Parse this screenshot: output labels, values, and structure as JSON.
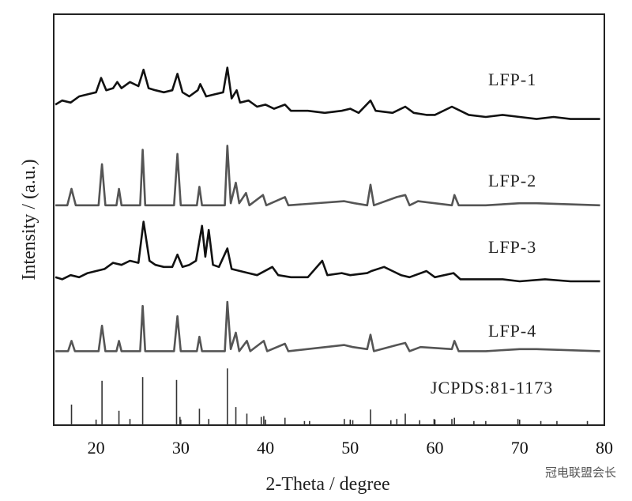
{
  "chart_data": {
    "type": "line",
    "xlabel": "2-Theta / degree",
    "ylabel": "Intensity / (a.u.)",
    "xlim": [
      15,
      80
    ],
    "xticks": [
      20,
      30,
      40,
      50,
      60,
      70,
      80
    ],
    "ylim": [
      0,
      100
    ],
    "series": [
      {
        "name": "LFP-1",
        "color": "#111111",
        "x": [
          15.2,
          16,
          17,
          18,
          19,
          20,
          20.6,
          21.2,
          22,
          22.5,
          23,
          24,
          25,
          25.6,
          26.2,
          27,
          28,
          29,
          29.6,
          30.2,
          31,
          32,
          32.3,
          33,
          34,
          35,
          35.5,
          36,
          36.6,
          37,
          38,
          39,
          40,
          41,
          42.3,
          43,
          45,
          47,
          49,
          50,
          51,
          52.4,
          53,
          55,
          56.5,
          57.5,
          59,
          60,
          62,
          63,
          64,
          66,
          68,
          70,
          72,
          74,
          76,
          78,
          79.5
        ],
        "values": [
          78,
          79,
          78.5,
          80,
          80.5,
          81,
          84.5,
          81.5,
          82,
          83.5,
          82,
          83.5,
          82.5,
          86.5,
          82,
          81.5,
          81,
          81.5,
          85.5,
          81,
          80,
          81.5,
          83,
          80,
          80.5,
          81,
          87,
          79.5,
          81.5,
          78.5,
          79,
          77.5,
          78,
          77,
          78,
          76.5,
          76.5,
          76,
          76.5,
          77,
          76,
          79,
          76.5,
          76,
          77.5,
          76,
          75.5,
          75.5,
          77.5,
          76.5,
          75.5,
          75,
          75.5,
          75,
          74.5,
          75,
          74.5,
          74.5,
          74.5
        ]
      },
      {
        "name": "LFP-2",
        "color": "#555555",
        "x": [
          15.2,
          16.6,
          17.1,
          17.6,
          20.3,
          20.7,
          21.1,
          22.4,
          22.7,
          23,
          25.2,
          25.5,
          25.8,
          29.2,
          29.6,
          30,
          31.9,
          32.2,
          32.5,
          35.2,
          35.5,
          35.9,
          36.5,
          36.9,
          37.7,
          38.1,
          39.7,
          40.1,
          42.3,
          42.7,
          49.3,
          50.5,
          52,
          52.4,
          52.8,
          55.5,
          56.5,
          57,
          58,
          62,
          62.3,
          62.8,
          66,
          70,
          72,
          79.5
        ],
        "values": [
          53.5,
          53.5,
          57.5,
          53.5,
          53.5,
          63.5,
          53.5,
          53.5,
          57.5,
          53.5,
          53.5,
          67,
          53.5,
          53.5,
          66,
          53.5,
          53.5,
          58,
          53.5,
          53.5,
          68,
          54,
          59,
          54,
          56.5,
          53.5,
          56,
          53.5,
          55.5,
          53.5,
          54.5,
          54,
          53.5,
          58.5,
          53.5,
          55.5,
          56,
          53.5,
          54.5,
          53.5,
          56,
          53.5,
          53.5,
          54,
          54,
          53.5
        ]
      },
      {
        "name": "LFP-3",
        "color": "#111111",
        "x": [
          15.2,
          16,
          17,
          18,
          19,
          20,
          21,
          22,
          23,
          24,
          25,
          25.6,
          26.3,
          27,
          28,
          29,
          29.6,
          30.2,
          31,
          31.8,
          32.5,
          32.9,
          33.3,
          33.8,
          34.5,
          35.5,
          36,
          37,
          38,
          39,
          40.8,
          41.5,
          43,
          45,
          46.7,
          47.3,
          49,
          50,
          52,
          52.5,
          54,
          55,
          56,
          57,
          59,
          60,
          62.2,
          63,
          66,
          68,
          70,
          73,
          76,
          79.5
        ],
        "values": [
          36,
          35.5,
          36.5,
          36,
          37,
          37.5,
          38,
          39.5,
          39,
          40,
          39.5,
          49.5,
          40,
          39,
          38.5,
          38.5,
          41.5,
          38.5,
          39,
          40,
          48.5,
          41,
          47.5,
          39,
          38.5,
          43,
          38,
          37.5,
          37,
          36.5,
          38.5,
          36.5,
          36,
          36,
          40,
          36.5,
          37,
          36.5,
          37,
          37.5,
          38.5,
          37.5,
          36.5,
          36,
          37.5,
          36,
          37,
          35.5,
          35.5,
          35.5,
          35,
          35.5,
          35,
          35
        ]
      },
      {
        "name": "LFP-4",
        "color": "#555555",
        "x": [
          15.2,
          16.7,
          17.1,
          17.5,
          20.3,
          20.7,
          21.1,
          22.4,
          22.7,
          23,
          25.2,
          25.5,
          25.8,
          29.2,
          29.6,
          30,
          31.9,
          32.2,
          32.5,
          35.2,
          35.5,
          35.9,
          36.5,
          36.9,
          37.8,
          38.2,
          39.8,
          40.2,
          42.3,
          42.7,
          49.3,
          50.3,
          52,
          52.4,
          52.8,
          55.5,
          56.5,
          57,
          58.3,
          62,
          62.3,
          62.8,
          66,
          70,
          72,
          79.5
        ],
        "values": [
          18,
          18,
          20.5,
          18,
          18,
          24.2,
          18,
          18,
          20.5,
          18,
          18,
          29,
          18,
          18,
          26.5,
          18,
          18,
          21.5,
          18,
          18,
          30,
          18.5,
          22.5,
          18,
          20.5,
          18,
          20.5,
          18,
          19.8,
          18,
          19.5,
          19,
          18.5,
          22,
          18,
          19.5,
          20,
          18,
          19,
          18.5,
          20.5,
          18,
          18,
          18.5,
          18.5,
          18
        ]
      }
    ],
    "reference": {
      "name": "JCPDS:81-1173",
      "color": "#333333",
      "x": [
        17.1,
        20.7,
        22.7,
        24.0,
        25.5,
        29.5,
        29.9,
        32.2,
        33.3,
        35.5,
        36.5,
        37.8,
        39.5,
        39.8,
        42.3,
        44.6,
        45.2,
        49.3,
        50.3,
        52.4,
        54.8,
        55.5,
        56.5,
        58.2,
        59.9,
        62.0,
        62.3,
        64.6,
        66.0,
        69.8,
        72.5,
        74.4,
        78.0
      ],
      "values": [
        5,
        10.8,
        3.5,
        1.5,
        11.7,
        11,
        2,
        4,
        1.5,
        13.8,
        4.4,
        2.8,
        2,
        2.2,
        1.8,
        1,
        1,
        1.5,
        1.2,
        3.8,
        1.2,
        1.5,
        2.8,
        1.2,
        1.5,
        1.5,
        1.8,
        1,
        1,
        1.5,
        1,
        1,
        1
      ]
    },
    "watermark": "冠电联盟会长"
  }
}
